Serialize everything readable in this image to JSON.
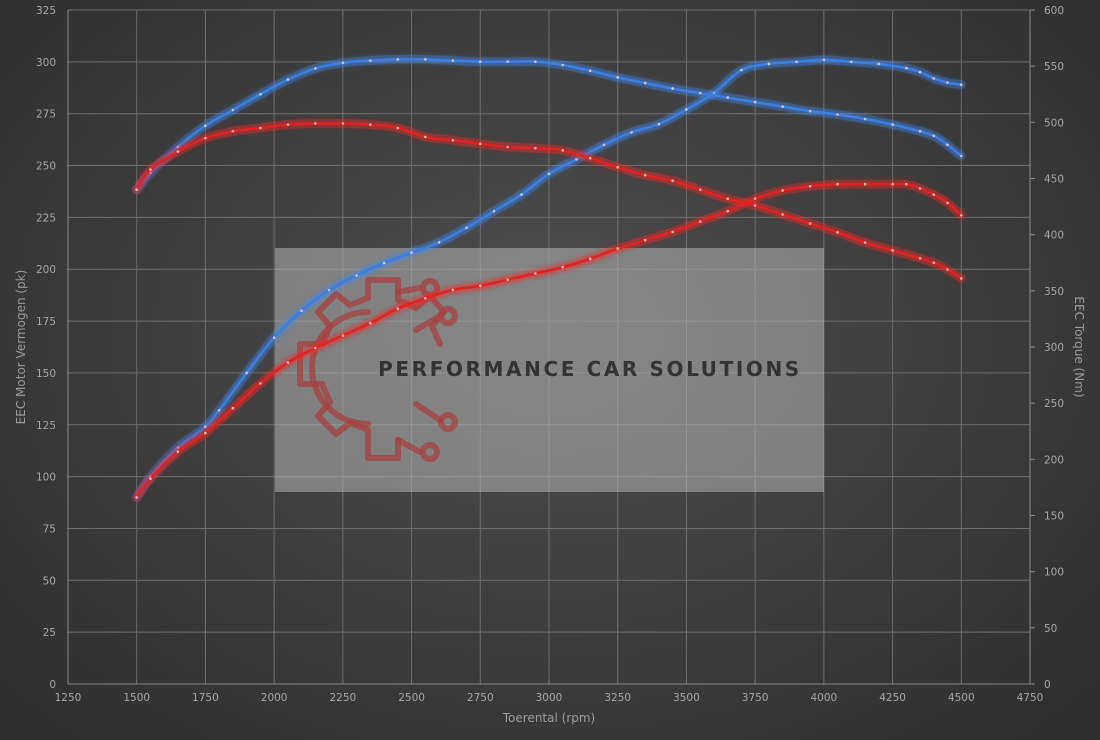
{
  "chart_data": {
    "type": "line",
    "xlabel": "Toerental (rpm)",
    "ylabel_left": "EEC Motor Vermogen (pk)",
    "ylabel_right": "EEC Torque (Nm)",
    "xlim": [
      1250,
      4750
    ],
    "ylim_left": [
      0,
      325
    ],
    "ylim_right": [
      0,
      600
    ],
    "x_ticks": [
      1250,
      1500,
      1750,
      2000,
      2250,
      2500,
      2750,
      3000,
      3250,
      3500,
      3750,
      4000,
      4250,
      4500,
      4750
    ],
    "y_left_ticks": [
      0,
      25,
      50,
      75,
      100,
      125,
      150,
      175,
      200,
      225,
      250,
      275,
      300,
      325
    ],
    "y_right_ticks": [
      0,
      50,
      100,
      150,
      200,
      250,
      300,
      350,
      400,
      450,
      500,
      550,
      600
    ],
    "grid": true,
    "series": [
      {
        "color": "#3a7fe0",
        "glow": "#4a8ff5",
        "axis": "left",
        "x": [
          1500,
          1550,
          1650,
          1750,
          1800,
          1900,
          2000,
          2100,
          2200,
          2300,
          2400,
          2500,
          2600,
          2700,
          2800,
          2900,
          3000,
          3100,
          3200,
          3300,
          3400,
          3500,
          3600,
          3700,
          3800,
          3900,
          4000,
          4100,
          4200,
          4300,
          4350,
          4400,
          4450,
          4500
        ],
        "y": [
          90,
          100,
          114,
          124,
          132,
          150,
          167,
          180,
          190,
          197,
          203,
          208,
          213,
          220,
          228,
          236,
          246,
          253,
          260,
          266,
          270,
          277,
          285,
          296,
          299,
          300,
          301,
          300,
          299,
          297,
          295,
          292,
          290,
          289
        ]
      },
      {
        "color": "#3a7fe0",
        "glow": "#4a8ff5",
        "axis": "right",
        "x": [
          1500,
          1550,
          1650,
          1750,
          1850,
          1950,
          2050,
          2150,
          2250,
          2350,
          2450,
          2550,
          2650,
          2750,
          2850,
          2950,
          3050,
          3150,
          3250,
          3350,
          3450,
          3550,
          3650,
          3750,
          3850,
          3950,
          4050,
          4150,
          4250,
          4350,
          4400,
          4450,
          4500
        ],
        "y": [
          440,
          455,
          478,
          497,
          511,
          525,
          538,
          548,
          553,
          555,
          556,
          556,
          555,
          554,
          554,
          554,
          551,
          546,
          540,
          535,
          530,
          526,
          522,
          518,
          514,
          510,
          507,
          503,
          498,
          492,
          488,
          480,
          470
        ]
      },
      {
        "color": "#e02424",
        "glow": "#ff3030",
        "axis": "left",
        "x": [
          1500,
          1550,
          1650,
          1750,
          1850,
          1950,
          2050,
          2150,
          2250,
          2350,
          2450,
          2550,
          2650,
          2750,
          2850,
          2950,
          3050,
          3150,
          3250,
          3350,
          3450,
          3550,
          3650,
          3750,
          3850,
          3950,
          4050,
          4150,
          4250,
          4300,
          4350,
          4400,
          4450,
          4500
        ],
        "y": [
          90,
          99,
          112,
          121,
          133,
          145,
          155,
          162,
          168,
          174,
          181,
          186,
          190,
          192,
          195,
          198,
          201,
          205,
          210,
          214,
          218,
          223,
          228,
          234,
          238,
          240,
          241,
          241,
          241,
          241,
          239,
          236,
          232,
          226
        ]
      },
      {
        "color": "#e02424",
        "glow": "#ff3030",
        "axis": "right",
        "x": [
          1500,
          1550,
          1650,
          1750,
          1850,
          1950,
          2050,
          2150,
          2250,
          2350,
          2450,
          2550,
          2650,
          2750,
          2850,
          2950,
          3050,
          3150,
          3250,
          3350,
          3450,
          3550,
          3650,
          3750,
          3850,
          3950,
          4050,
          4150,
          4250,
          4350,
          4400,
          4450,
          4500
        ],
        "y": [
          440,
          458,
          474,
          486,
          492,
          495,
          498,
          499,
          499,
          498,
          495,
          487,
          484,
          481,
          478,
          477,
          475,
          468,
          460,
          453,
          448,
          440,
          432,
          426,
          418,
          410,
          402,
          393,
          386,
          379,
          375,
          369,
          361
        ]
      }
    ]
  },
  "watermark": {
    "text": "PERFORMANCE CAR SOLUTIONS",
    "logo_icon": "gear-circuit-icon"
  }
}
